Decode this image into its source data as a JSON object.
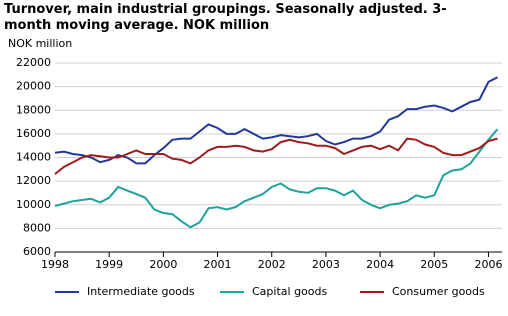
{
  "chart_data": {
    "type": "line",
    "title": "Turnover, main industrial groupings. Seasonally adjusted. 3-month moving average. NOK million",
    "y_label": "NOK million",
    "x": [
      1998,
      1998.167,
      1998.333,
      1998.5,
      1998.667,
      1998.833,
      1999,
      1999.167,
      1999.333,
      1999.5,
      1999.667,
      1999.833,
      2000,
      2000.167,
      2000.333,
      2000.5,
      2000.667,
      2000.833,
      2001,
      2001.167,
      2001.333,
      2001.5,
      2001.667,
      2001.833,
      2002,
      2002.167,
      2002.333,
      2002.5,
      2002.667,
      2002.833,
      2003,
      2003.167,
      2003.333,
      2003.5,
      2003.667,
      2003.833,
      2004,
      2004.167,
      2004.333,
      2004.5,
      2004.667,
      2004.833,
      2005,
      2005.167,
      2005.333,
      2005.5,
      2005.667,
      2005.833,
      2006,
      2006.167
    ],
    "series": [
      {
        "name": "Intermediate goods",
        "color": "#23399a",
        "values": [
          14400,
          14500,
          14300,
          14200,
          14000,
          13600,
          13800,
          14200,
          14000,
          13500,
          13500,
          14200,
          14800,
          15500,
          15600,
          15600,
          16200,
          16800,
          16500,
          16000,
          16000,
          16400,
          16000,
          15600,
          15700,
          15900,
          15800,
          15700,
          15800,
          16000,
          15400,
          15100,
          15300,
          15600,
          15600,
          15800,
          16200,
          17200,
          17500,
          18100,
          18100,
          18300,
          18400,
          18200,
          17900,
          18300,
          18700,
          18900,
          20400,
          20800
        ]
      },
      {
        "name": "Capital goods",
        "color": "#1ea39c",
        "values": [
          9900,
          10100,
          10300,
          10400,
          10500,
          10200,
          10600,
          11500,
          11200,
          10900,
          10600,
          9600,
          9300,
          9200,
          8600,
          8100,
          8500,
          9700,
          9800,
          9600,
          9800,
          10300,
          10600,
          10900,
          11500,
          11800,
          11300,
          11100,
          11000,
          11400,
          11400,
          11200,
          10800,
          11200,
          10400,
          10000,
          9700,
          10000,
          10100,
          10300,
          10800,
          10600,
          10800,
          12500,
          12900,
          13000,
          13500,
          14500,
          15500,
          16400
        ]
      },
      {
        "name": "Consumer goods",
        "color": "#a01c1c",
        "values": [
          12600,
          13200,
          13600,
          14000,
          14200,
          14100,
          14000,
          14000,
          14300,
          14600,
          14300,
          14300,
          14300,
          13900,
          13800,
          13500,
          14000,
          14600,
          14900,
          14900,
          15000,
          14900,
          14600,
          14500,
          14700,
          15300,
          15500,
          15300,
          15200,
          15000,
          15000,
          14800,
          14300,
          14600,
          14900,
          15000,
          14700,
          15000,
          14600,
          15600,
          15500,
          15100,
          14900,
          14400,
          14200,
          14200,
          14500,
          14800,
          15400,
          15600
        ]
      }
    ],
    "xlim": [
      1998,
      2006.25
    ],
    "xticks": [
      1998,
      1999,
      2000,
      2001,
      2002,
      2003,
      2004,
      2005,
      2006
    ],
    "ylim": [
      6000,
      22000
    ],
    "yticks": [
      6000,
      8000,
      10000,
      12000,
      14000,
      16000,
      18000,
      20000,
      22000
    ],
    "grid": true
  }
}
